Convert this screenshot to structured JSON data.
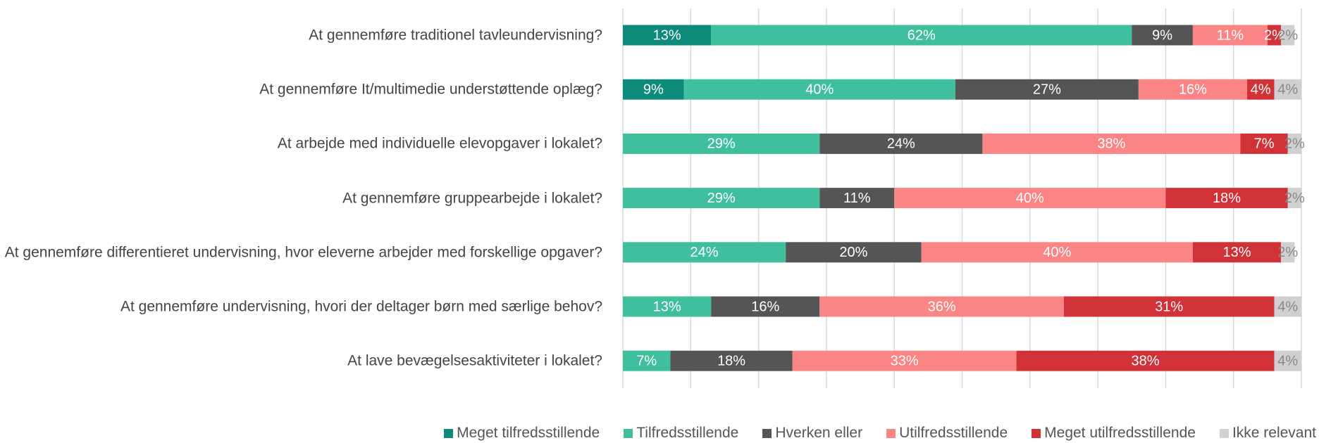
{
  "chart_data": {
    "type": "stacked_barh",
    "categories": [
      "At gennemføre traditionel tavleundervisning?",
      "At gennemføre It/multimedie understøttende oplæg?",
      "At arbejde med individuelle elevopgaver i lokalet?",
      "At gennemføre gruppearbejde i lokalet?",
      "At gennemføre differentieret undervisning, hvor eleverne arbejder med forskellige opgaver?",
      "At gennemføre undervisning, hvori der deltager børn med særlige behov?",
      "At lave bevægelsesaktiviteter i lokalet?"
    ],
    "series": [
      {
        "name": "Meget tilfredsstillende",
        "color": "#0e8a7a",
        "values": [
          13,
          9,
          null,
          null,
          null,
          null,
          null
        ],
        "value_labels": [
          "13%",
          "9%",
          null,
          null,
          null,
          null,
          null
        ]
      },
      {
        "name": "Tilfredsstillende",
        "color": "#40bf9f",
        "values": [
          62,
          40,
          29,
          29,
          24,
          13,
          7
        ],
        "value_labels": [
          "62%",
          "40%",
          "29%",
          "29%",
          "24%",
          "13%",
          "7%"
        ]
      },
      {
        "name": "Hverken eller",
        "color": "#555555",
        "values": [
          9,
          27,
          24,
          11,
          20,
          16,
          18
        ],
        "value_labels": [
          "9%",
          "27%",
          "24%",
          "11%",
          "20%",
          "16%",
          "18%"
        ]
      },
      {
        "name": "Utilfredsstillende",
        "color": "#fb8585",
        "values": [
          11,
          16,
          38,
          40,
          40,
          36,
          33
        ],
        "value_labels": [
          "11%",
          "16%",
          "38%",
          "40%",
          "40%",
          "36%",
          "33%"
        ]
      },
      {
        "name": "Meget utilfredsstillende",
        "color": "#d03237",
        "values": [
          2,
          4,
          7,
          18,
          13,
          31,
          38
        ],
        "value_labels": [
          "2%",
          "4%",
          "7%",
          "18%",
          "13%",
          "31%",
          "38%"
        ]
      },
      {
        "name": "Ikke relevant",
        "color": "#d0d0d0",
        "values": [
          2,
          4,
          2,
          2,
          2,
          4,
          4
        ],
        "value_labels": [
          "2%",
          "4%",
          "2%",
          "2%",
          "2%",
          "4%",
          "4%"
        ]
      }
    ],
    "xlim": [
      0,
      100
    ],
    "xticks": [
      0,
      10,
      20,
      30,
      40,
      50,
      60,
      70,
      80,
      90,
      100
    ],
    "grid": true,
    "legend": "bottom"
  }
}
